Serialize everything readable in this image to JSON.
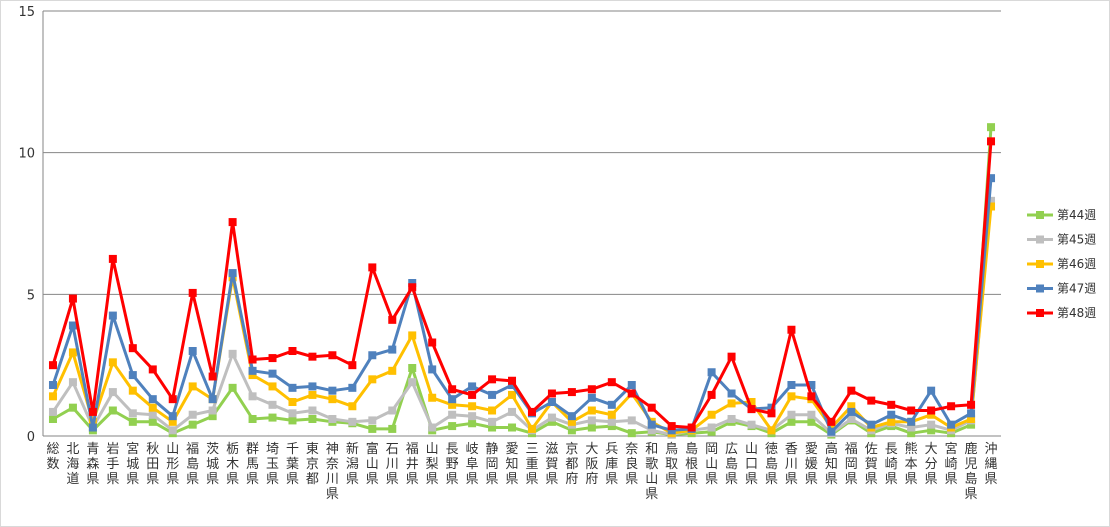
{
  "chart_data": {
    "type": "line",
    "title": "",
    "xlabel": "",
    "ylabel": "",
    "ylim": [
      0,
      15
    ],
    "yticks": [
      0,
      5,
      10,
      15
    ],
    "grid": true,
    "legend_position": "right",
    "categories": [
      "総数",
      "北海道",
      "青森県",
      "岩手県",
      "宮城県",
      "秋田県",
      "山形県",
      "福島県",
      "茨城県",
      "栃木県",
      "群馬県",
      "埼玉県",
      "千葉県",
      "東京都",
      "神奈川県",
      "新潟県",
      "富山県",
      "石川県",
      "福井県",
      "山梨県",
      "長野県",
      "岐阜県",
      "静岡県",
      "愛知県",
      "三重県",
      "滋賀県",
      "京都府",
      "大阪府",
      "兵庫県",
      "奈良県",
      "和歌山県",
      "鳥取県",
      "島根県",
      "岡山県",
      "広島県",
      "山口県",
      "徳島県",
      "香川県",
      "愛媛県",
      "高知県",
      "福岡県",
      "佐賀県",
      "長崎県",
      "熊本県",
      "大分県",
      "宮崎県",
      "鹿児島県",
      "沖縄県"
    ],
    "series": [
      {
        "name": "第44週",
        "color": "#92d050",
        "values": [
          0.6,
          1.0,
          0.2,
          0.9,
          0.5,
          0.5,
          0.1,
          0.4,
          0.7,
          1.7,
          0.6,
          0.65,
          0.55,
          0.6,
          0.5,
          0.45,
          0.25,
          0.25,
          2.4,
          0.2,
          0.35,
          0.45,
          0.3,
          0.3,
          0.1,
          0.5,
          0.2,
          0.3,
          0.35,
          0.1,
          0.15,
          0.05,
          0.1,
          0.15,
          0.5,
          0.35,
          0.1,
          0.5,
          0.5,
          0.05,
          0.55,
          0.1,
          0.35,
          0.1,
          0.2,
          0.1,
          0.4,
          10.9
        ]
      },
      {
        "name": "第45週",
        "color": "#bfbfbf",
        "values": [
          0.85,
          1.9,
          0.3,
          1.55,
          0.8,
          0.75,
          0.2,
          0.75,
          0.9,
          2.9,
          1.4,
          1.1,
          0.8,
          0.9,
          0.6,
          0.5,
          0.55,
          0.9,
          1.9,
          0.3,
          0.75,
          0.7,
          0.5,
          0.85,
          0.2,
          0.65,
          0.4,
          0.55,
          0.5,
          0.55,
          0.2,
          0.05,
          0.2,
          0.3,
          0.6,
          0.4,
          0.2,
          0.75,
          0.75,
          0.1,
          0.6,
          0.2,
          0.45,
          0.3,
          0.4,
          0.2,
          0.55,
          8.3
        ]
      },
      {
        "name": "第46週",
        "color": "#ffc000",
        "values": [
          1.4,
          2.95,
          0.5,
          2.6,
          1.6,
          1.0,
          0.5,
          1.75,
          1.3,
          5.6,
          2.15,
          1.75,
          1.2,
          1.45,
          1.3,
          1.05,
          2.0,
          2.3,
          3.55,
          1.35,
          1.1,
          1.05,
          0.9,
          1.45,
          0.25,
          1.2,
          0.5,
          0.9,
          0.75,
          1.5,
          0.5,
          0.1,
          0.2,
          0.75,
          1.15,
          1.2,
          0.2,
          1.4,
          1.3,
          0.3,
          1.05,
          0.3,
          0.5,
          0.5,
          0.75,
          0.3,
          0.6,
          8.1
        ]
      },
      {
        "name": "第47週",
        "color": "#4f81bd",
        "values": [
          1.8,
          3.9,
          0.3,
          4.25,
          2.15,
          1.3,
          0.7,
          3.0,
          1.3,
          5.75,
          2.3,
          2.2,
          1.7,
          1.75,
          1.6,
          1.7,
          2.85,
          3.05,
          5.4,
          2.35,
          1.3,
          1.75,
          1.45,
          1.8,
          0.8,
          1.2,
          0.7,
          1.35,
          1.1,
          1.8,
          0.4,
          0.2,
          0.25,
          2.25,
          1.5,
          0.95,
          1.0,
          1.8,
          1.8,
          0.15,
          0.85,
          0.4,
          0.75,
          0.5,
          1.6,
          0.4,
          0.8,
          9.1
        ]
      },
      {
        "name": "第48週",
        "color": "#ff0000",
        "values": [
          2.5,
          4.85,
          0.85,
          6.25,
          3.1,
          2.35,
          1.3,
          5.05,
          2.1,
          7.55,
          2.7,
          2.75,
          3.0,
          2.8,
          2.85,
          2.5,
          5.95,
          4.1,
          5.25,
          3.3,
          1.65,
          1.45,
          2.0,
          1.95,
          0.85,
          1.5,
          1.55,
          1.65,
          1.9,
          1.5,
          1.0,
          0.35,
          0.3,
          1.45,
          2.8,
          0.95,
          0.8,
          3.75,
          1.4,
          0.5,
          1.6,
          1.25,
          1.1,
          0.9,
          0.9,
          1.05,
          1.1,
          10.4
        ]
      }
    ]
  }
}
